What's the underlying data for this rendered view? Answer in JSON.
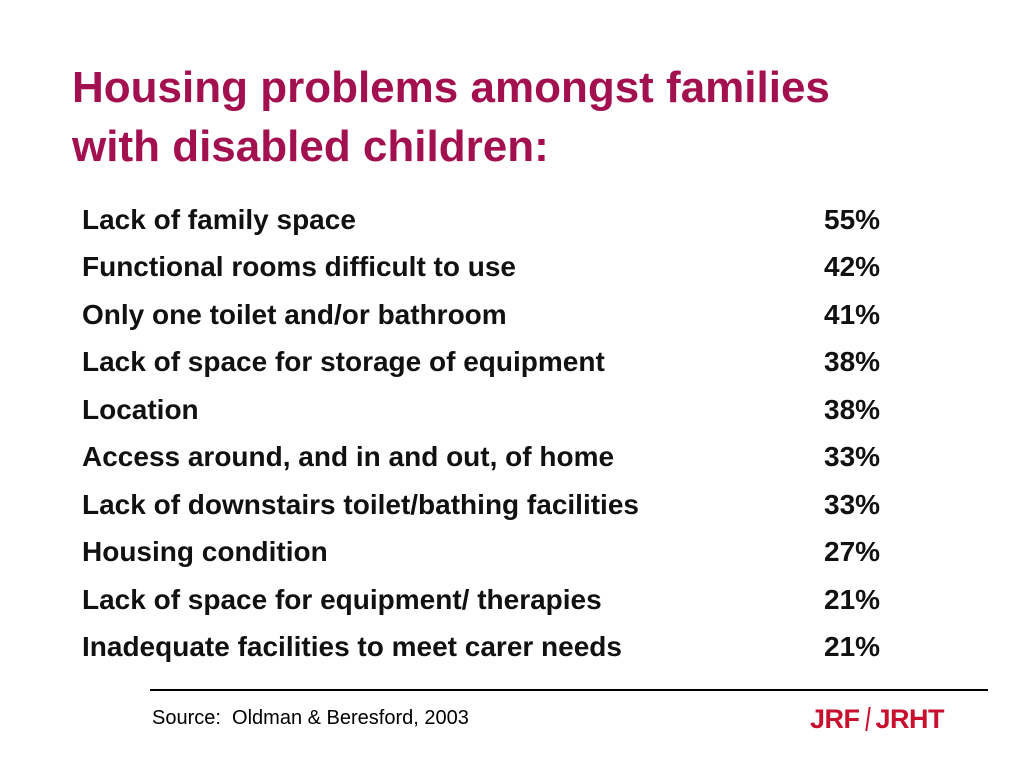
{
  "title": {
    "line1": "Housing problems amongst families",
    "line2": "with disabled children:"
  },
  "table": {
    "rows": [
      {
        "problem": "Lack of family space",
        "percent": "55%"
      },
      {
        "problem": "Functional rooms difficult to use",
        "percent": "42%"
      },
      {
        "problem": "Only one toilet and/or bathroom",
        "percent": "41%"
      },
      {
        "problem": "Lack of space for storage of equipment",
        "percent": "38%"
      },
      {
        "problem": "Location",
        "percent": "38%"
      },
      {
        "problem": "Access around, and in and out, of home",
        "percent": "33%"
      },
      {
        "problem": "Lack of downstairs toilet/bathing facilities",
        "percent": "33%"
      },
      {
        "problem": "Housing condition",
        "percent": "27%"
      },
      {
        "problem": "Lack of space for equipment/ therapies",
        "percent": "21%"
      },
      {
        "problem": "Inadequate facilities to meet carer needs",
        "percent": "21%"
      }
    ]
  },
  "footer": {
    "source": "Source:  Oldman & Beresford, 2003"
  },
  "logo": {
    "left_text": "JRF",
    "right_text": "JRHT",
    "color": "#c8102e"
  },
  "colors": {
    "title": "#a3104f",
    "text": "#111111"
  }
}
